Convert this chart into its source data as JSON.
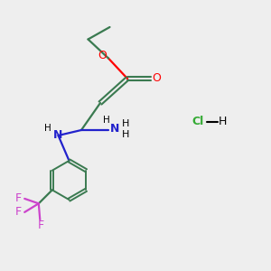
{
  "background_color": "#eeeeee",
  "bond_color": "#3a7a50",
  "atom_colors": {
    "O": "#ff0000",
    "N": "#2222cc",
    "F": "#cc44cc",
    "Cl": "#33aa33",
    "C": "#3a7a50"
  },
  "figsize": [
    3.0,
    3.0
  ],
  "dpi": 100,
  "xlim": [
    0,
    10
  ],
  "ylim": [
    0,
    10
  ]
}
